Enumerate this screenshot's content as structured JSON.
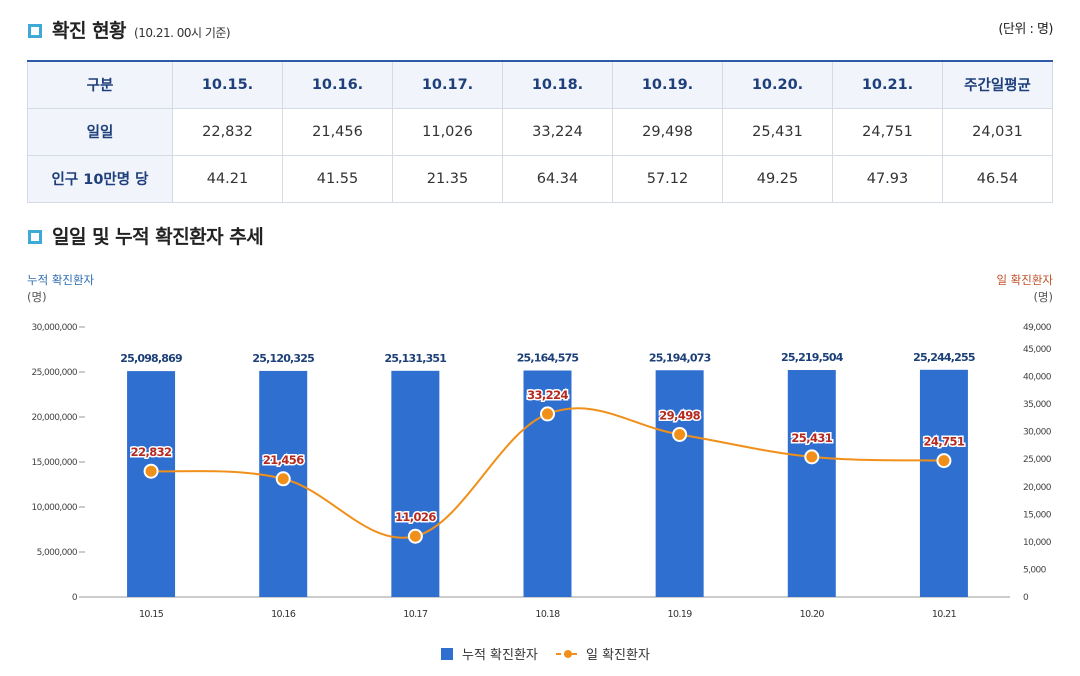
{
  "section1": {
    "title": "확진 현황",
    "subtitle": "(10.21. 00시 기준)",
    "unit": "(단위 : 명)"
  },
  "table": {
    "headers": [
      "구분",
      "10.15.",
      "10.16.",
      "10.17.",
      "10.18.",
      "10.19.",
      "10.20.",
      "10.21.",
      "주간일평균"
    ],
    "rows": [
      {
        "label": "일일",
        "cells": [
          "22,832",
          "21,456",
          "11,026",
          "33,224",
          "29,498",
          "25,431",
          "24,751",
          "24,031"
        ]
      },
      {
        "label": "인구 10만명 당",
        "cells": [
          "44.21",
          "41.55",
          "21.35",
          "64.34",
          "57.12",
          "49.25",
          "47.93",
          "46.54"
        ]
      }
    ]
  },
  "section2": {
    "title": "일일 및 누적 확진환자 추세"
  },
  "colors": {
    "bar": "#2f6fd0",
    "line": "#f0901a",
    "left_axis_title": "#2b6cb0",
    "right_axis_title": "#c0502a",
    "bar_label": "#1c3f78",
    "line_label": "#b5291f"
  },
  "chart_data": {
    "type": "bar",
    "categories": [
      "10.15",
      "10.16",
      "10.17",
      "10.18",
      "10.19",
      "10.20",
      "10.21"
    ],
    "left_axis": {
      "title": "누적 확진환자",
      "unit": "(명)",
      "range": [
        0,
        30000000
      ],
      "ticks": [
        0,
        5000000,
        10000000,
        15000000,
        20000000,
        25000000,
        30000000
      ],
      "tick_labels": [
        "0",
        "5,000,000",
        "10,000,000",
        "15,000,000",
        "20,000,000",
        "25,000,000",
        "30,000,000"
      ]
    },
    "right_axis": {
      "title": "일 확진환자",
      "unit": "(명)",
      "range": [
        0,
        49000
      ],
      "ticks": [
        0,
        5000,
        10000,
        15000,
        20000,
        25000,
        30000,
        35000,
        40000,
        45000,
        49000
      ],
      "tick_labels": [
        "0",
        "5,000",
        "10,000",
        "15,000",
        "20,000",
        "25,000",
        "30,000",
        "35,000",
        "40,000",
        "45,000",
        "49,000"
      ]
    },
    "series": [
      {
        "name": "누적 확진환자",
        "type": "bar",
        "axis": "left",
        "values": [
          25098869,
          25120325,
          25131351,
          25164575,
          25194073,
          25219504,
          25244255
        ],
        "labels": [
          "25,098,869",
          "25,120,325",
          "25,131,351",
          "25,164,575",
          "25,194,073",
          "25,219,504",
          "25,244,255"
        ]
      },
      {
        "name": "일 확진환자",
        "type": "line",
        "axis": "right",
        "values": [
          22832,
          21456,
          11026,
          33224,
          29498,
          25431,
          24751
        ],
        "labels": [
          "22,832",
          "21,456",
          "11,026",
          "33,224",
          "29,498",
          "25,431",
          "24,751"
        ]
      }
    ],
    "legend_position": "bottom-center",
    "grid": false
  }
}
